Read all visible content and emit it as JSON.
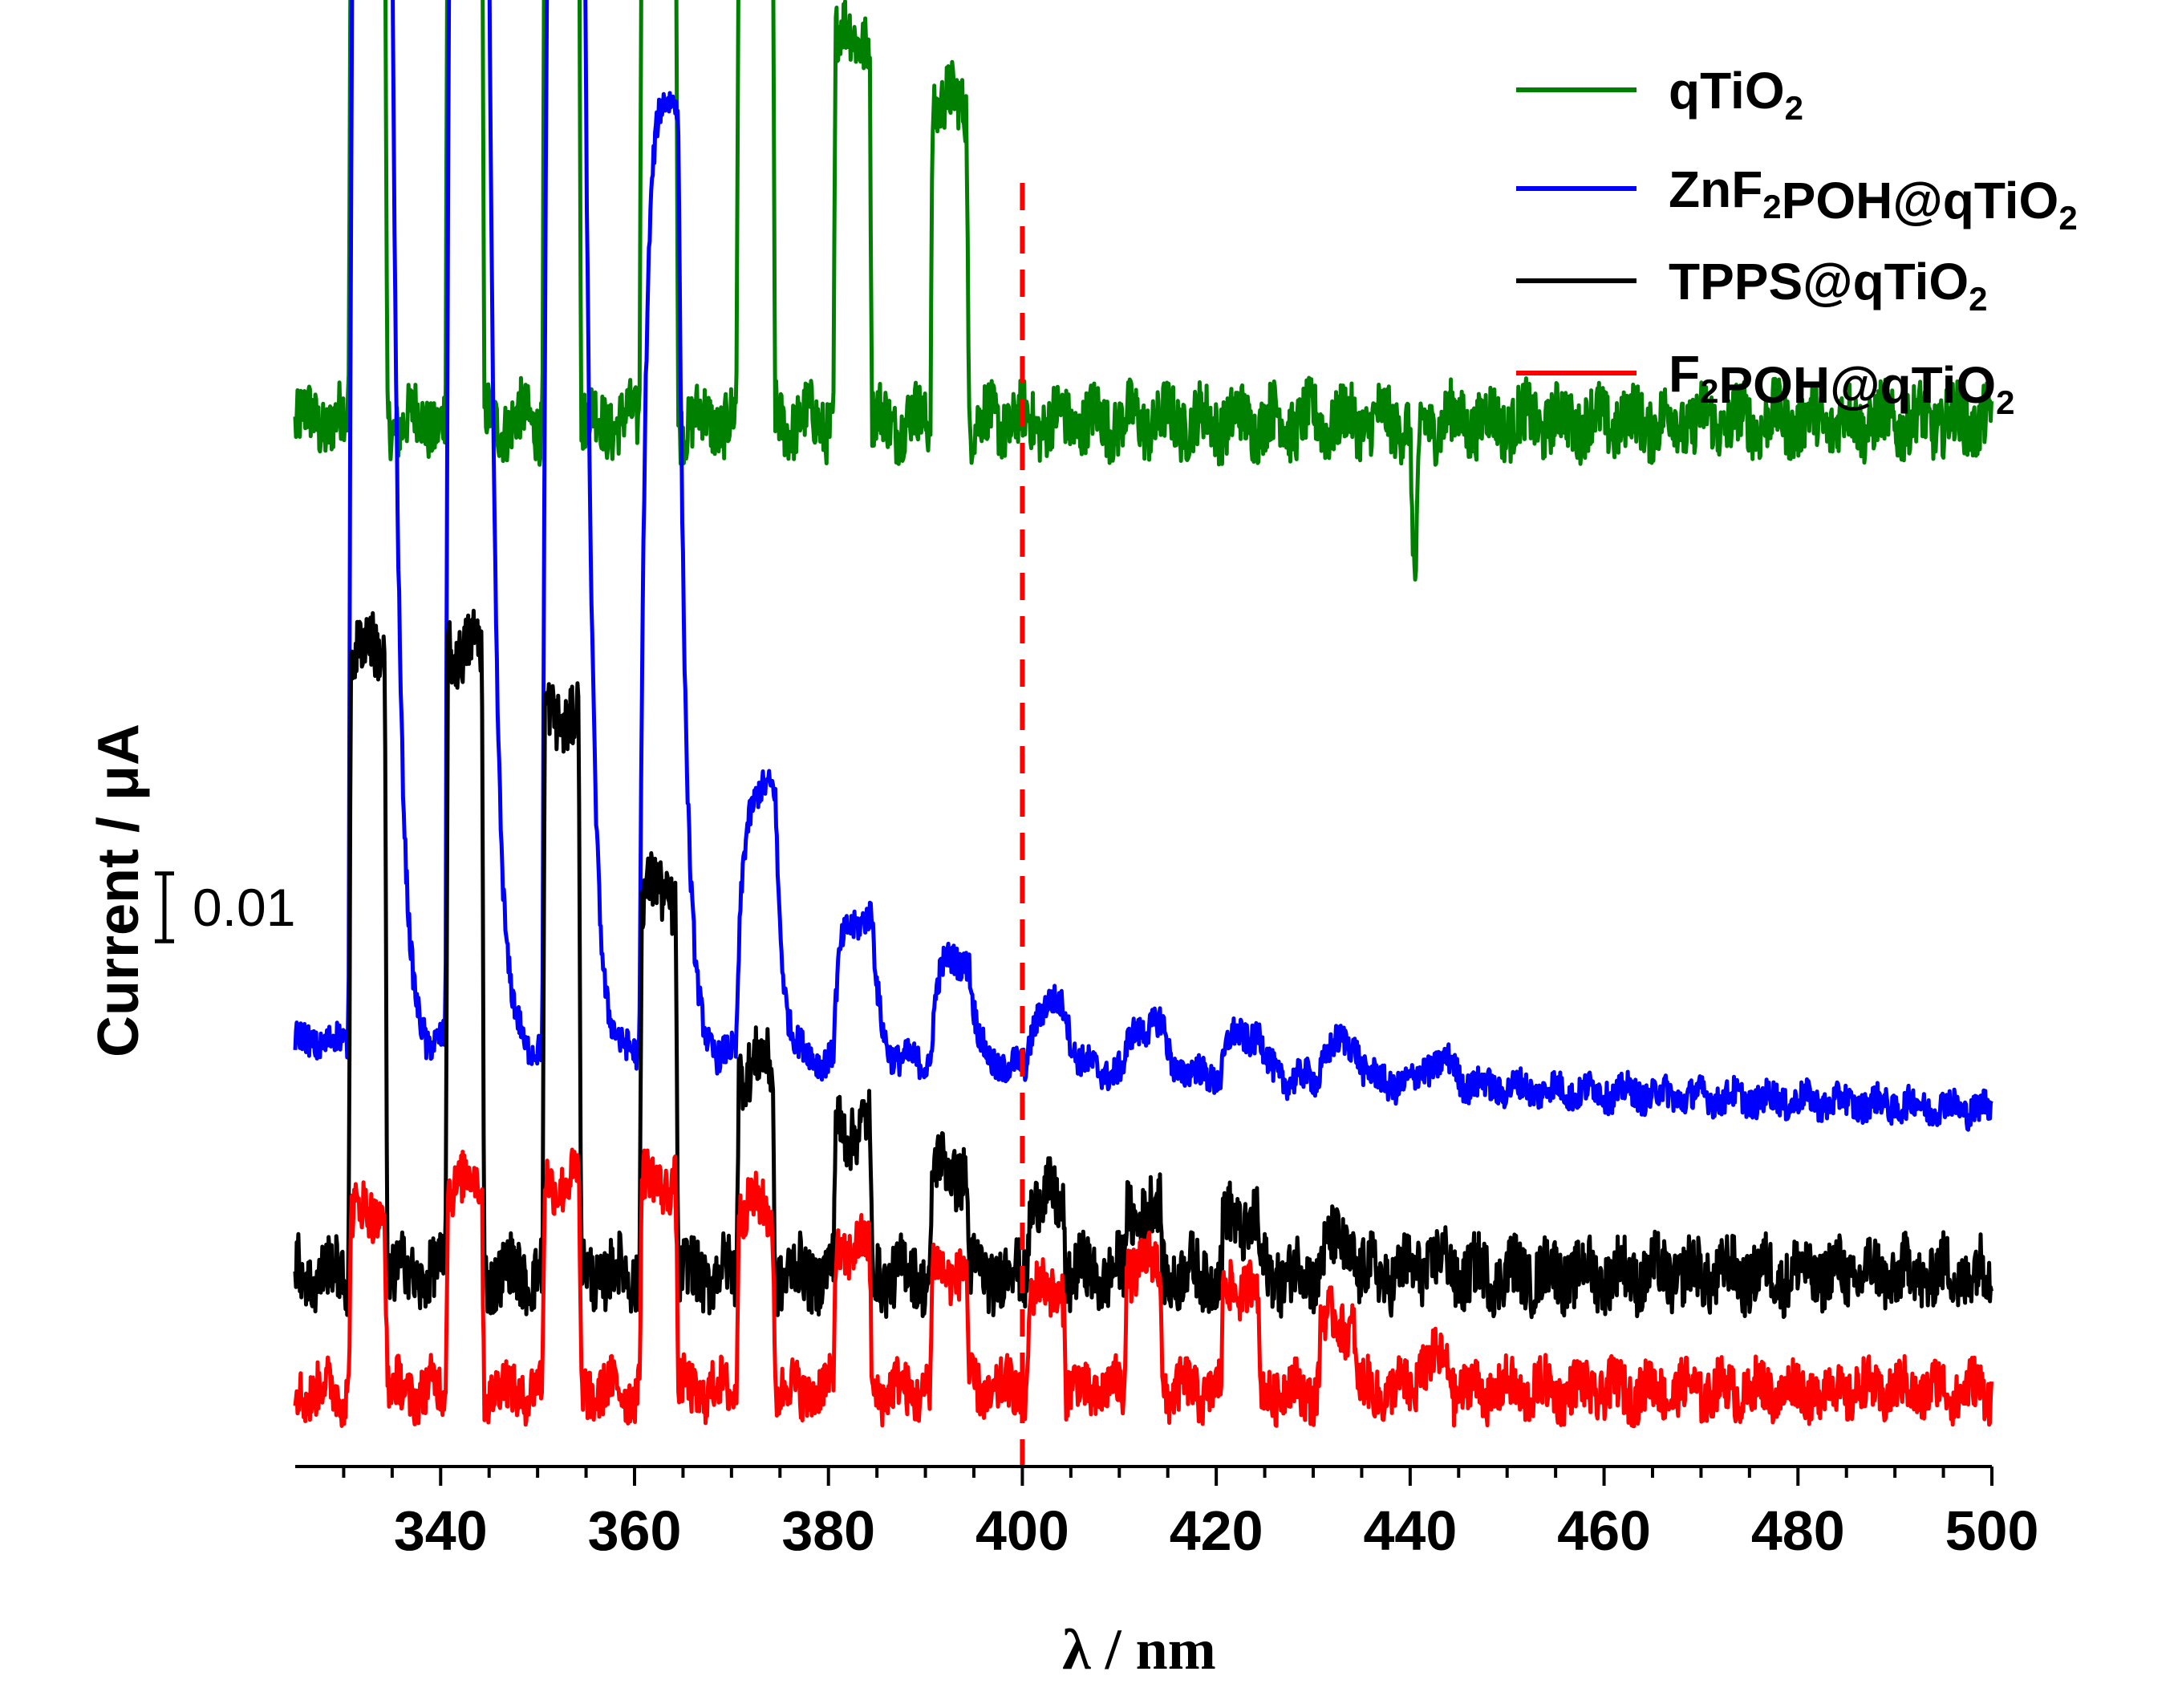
{
  "chart_data": {
    "type": "line",
    "xlabel": "λ / nm",
    "ylabel": "Current / μA",
    "xlim": [
      325,
      500
    ],
    "x_ticks": [
      340,
      360,
      380,
      400,
      420,
      440,
      460,
      480,
      500
    ],
    "x_minor_step": 5,
    "offset_traces": true,
    "scale_bar": {
      "value": 0.01,
      "label": "0.01"
    },
    "reference_line": {
      "x": 400,
      "style": "dashed",
      "color": "#ff0000"
    },
    "pulse_centers": [
      332.5,
      342.5,
      352.5,
      362.5,
      372.5,
      382.5,
      392.5,
      402.5,
      412.5,
      422.5,
      432.5,
      442.5
    ],
    "pulse_width_nm": 4,
    "legend": {
      "position": "top-right",
      "entries": [
        {
          "base": "qTiO",
          "sub": "2",
          "tail": "",
          "color": "#008000"
        },
        {
          "base": "ZnF",
          "sub": "2",
          "tail": "POH@qTiO",
          "sub2": "2",
          "color": "#0000ff"
        },
        {
          "base": "TPPS@qTiO",
          "sub": "2",
          "tail": "",
          "color": "#000000"
        },
        {
          "base": "F",
          "sub": "2",
          "tail": "POH@qTiO",
          "sub2": "2",
          "color": "#ff0000"
        }
      ]
    },
    "series": [
      {
        "name": "qTiO2",
        "color": "#008000",
        "unit": "μA",
        "baseline": 0.0,
        "pulse_amplitudes": [
          0.0101,
          0.0116,
          0.0128,
          0.0115,
          0.0099,
          0.0074,
          0.0061,
          0,
          0,
          0,
          0,
          0
        ],
        "pulse_shape": "square",
        "noise": 0.0006,
        "spike": {
          "x": 440.5,
          "value": -0.0035
        }
      },
      {
        "name": "ZnF2POH@qTiO2",
        "color": "#0000ff",
        "unit": "μA",
        "baseline": 0.0,
        "pulse_amplitudes": [
          0.0425,
          0.0415,
          0.0352,
          0.0183,
          0.0051,
          0.0027,
          0.002,
          0.0012,
          0.0009,
          0.0008,
          0.0007,
          0.0004
        ],
        "pulse_shape": "rise-decay",
        "noise": 0.0003,
        "drift_end": -0.0013
      },
      {
        "name": "TPPS@qTiO2",
        "color": "#000000",
        "unit": "μA",
        "baseline": 0.0,
        "pulse_amplitudes": [
          0.012,
          0.012,
          0.0107,
          0.0073,
          0.004,
          0.0028,
          0.002,
          0.0014,
          0.0012,
          0.001,
          0.0005,
          0.0002
        ],
        "pulse_shape": "square",
        "noise": 0.0006
      },
      {
        "name": "F2POH@qTiO2",
        "color": "#ff0000",
        "unit": "μA",
        "baseline": 0.0,
        "pulse_amplitudes": [
          0.0034,
          0.004,
          0.004,
          0.004,
          0.0035,
          0.0027,
          0.0023,
          0.0019,
          0.0024,
          0.002,
          0.0013,
          0.0005
        ],
        "pulse_shape": "square",
        "noise": 0.0005
      }
    ]
  }
}
